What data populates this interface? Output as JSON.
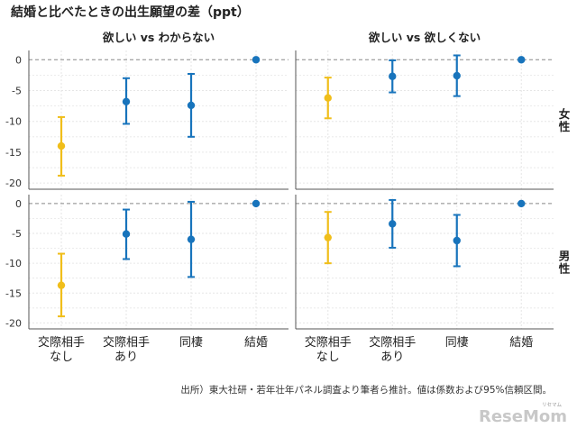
{
  "chart_data": {
    "type": "scatter",
    "title": "結婚と比べたときの出生願望の差（ppt）",
    "facet_columns": [
      "欲しい vs わからない",
      "欲しい vs 欲しくない"
    ],
    "facet_rows": [
      "女性",
      "男性"
    ],
    "categories": [
      "交際相手\nなし",
      "交際相手\nあり",
      "同棲",
      "結婚"
    ],
    "ylim": [
      -21,
      1.5
    ],
    "yticks": [
      0,
      -5,
      -10,
      -15,
      -20
    ],
    "reference_line": 0,
    "colors": {
      "highlight": "#F0BE1A",
      "default": "#1874BC",
      "refline": "#888888",
      "grid": "#e6e6e6"
    },
    "panels": [
      {
        "row": "女性",
        "col": "欲しい vs わからない",
        "points": [
          {
            "category": "交際相手\nなし",
            "est": -14.0,
            "lo": -18.8,
            "hi": -9.3,
            "color": "highlight"
          },
          {
            "category": "交際相手\nあり",
            "est": -6.8,
            "lo": -10.4,
            "hi": -3.0,
            "color": "default"
          },
          {
            "category": "同棲",
            "est": -7.4,
            "lo": -12.5,
            "hi": -2.3,
            "color": "default"
          },
          {
            "category": "結婚",
            "est": 0,
            "lo": 0,
            "hi": 0,
            "color": "default"
          }
        ]
      },
      {
        "row": "女性",
        "col": "欲しい vs 欲しくない",
        "points": [
          {
            "category": "交際相手\nなし",
            "est": -6.2,
            "lo": -9.5,
            "hi": -2.9,
            "color": "highlight"
          },
          {
            "category": "交際相手\nあり",
            "est": -2.7,
            "lo": -5.3,
            "hi": -0.1,
            "color": "default"
          },
          {
            "category": "同棲",
            "est": -2.6,
            "lo": -5.9,
            "hi": 0.7,
            "color": "default"
          },
          {
            "category": "結婚",
            "est": 0,
            "lo": 0,
            "hi": 0,
            "color": "default"
          }
        ]
      },
      {
        "row": "男性",
        "col": "欲しい vs わからない",
        "points": [
          {
            "category": "交際相手\nなし",
            "est": -13.7,
            "lo": -18.9,
            "hi": -8.4,
            "color": "highlight"
          },
          {
            "category": "交際相手\nあり",
            "est": -5.1,
            "lo": -9.3,
            "hi": -1.0,
            "color": "default"
          },
          {
            "category": "同棲",
            "est": -6.0,
            "lo": -12.3,
            "hi": 0.3,
            "color": "default"
          },
          {
            "category": "結婚",
            "est": 0,
            "lo": 0,
            "hi": 0,
            "color": "default"
          }
        ]
      },
      {
        "row": "男性",
        "col": "欲しい vs 欲しくない",
        "points": [
          {
            "category": "交際相手\nなし",
            "est": -5.7,
            "lo": -10.0,
            "hi": -1.4,
            "color": "highlight"
          },
          {
            "category": "交際相手\nあり",
            "est": -3.4,
            "lo": -7.4,
            "hi": 0.6,
            "color": "default"
          },
          {
            "category": "同棲",
            "est": -6.2,
            "lo": -10.5,
            "hi": -1.9,
            "color": "default"
          },
          {
            "category": "結婚",
            "est": 0,
            "lo": 0,
            "hi": 0,
            "color": "default"
          }
        ]
      }
    ]
  },
  "source_note": "出所）東大社研・若年壮年パネル調査より筆者ら推計。値は係数および95%信頼区間。",
  "watermark": "ReseMom",
  "watermark_small": "リセマム"
}
